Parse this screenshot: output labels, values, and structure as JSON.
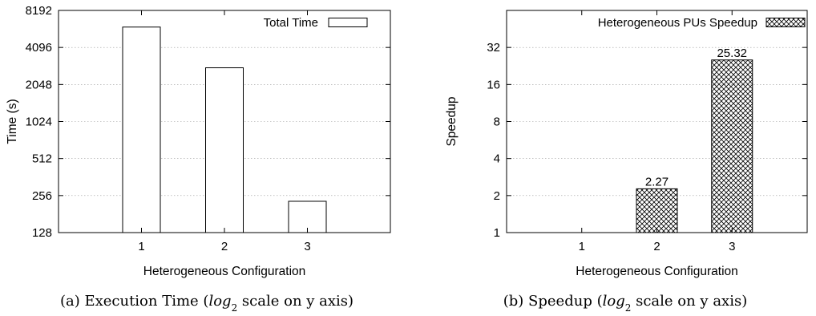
{
  "chart_data": [
    {
      "type": "bar",
      "categories": [
        "1",
        "2",
        "3"
      ],
      "series": [
        {
          "name": "Total Time",
          "values": [
            6000,
            2800,
            230
          ]
        }
      ],
      "xlabel": "Heterogeneous Configuration",
      "ylabel": "Time (s)",
      "yscale": "log2",
      "ylim": [
        128,
        8192
      ],
      "yticks": [
        "128",
        "256",
        "512",
        "1024",
        "2048",
        "4096",
        "8192"
      ],
      "grid": true,
      "legend": "top-right",
      "bar_pattern": "empty",
      "caption_prefix": "(a)  Execution Time (",
      "caption_math_base": "log",
      "caption_math_sub": "2",
      "caption_suffix": " scale on y axis)"
    },
    {
      "type": "bar",
      "categories": [
        "1",
        "2",
        "3"
      ],
      "series": [
        {
          "name": "Heterogeneous PUs Speedup",
          "values": [
            1,
            2.27,
            25.32
          ]
        }
      ],
      "data_labels": [
        "",
        "2.27",
        "25.32"
      ],
      "xlabel": "Heterogeneous Configuration",
      "ylabel": "Speedup",
      "yscale": "log2",
      "ylim": [
        1,
        64
      ],
      "yticks": [
        "1",
        "2",
        "4",
        "8",
        "16",
        "32"
      ],
      "grid": true,
      "legend": "top-right",
      "bar_pattern": "crosshatch",
      "caption_prefix": "(b)  Speedup (",
      "caption_math_base": "log",
      "caption_math_sub": "2",
      "caption_suffix": " scale on y axis)"
    }
  ]
}
